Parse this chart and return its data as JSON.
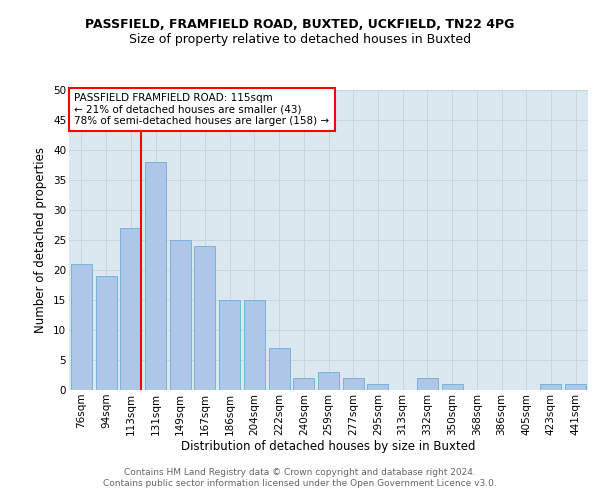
{
  "title": "PASSFIELD, FRAMFIELD ROAD, BUXTED, UCKFIELD, TN22 4PG",
  "subtitle": "Size of property relative to detached houses in Buxted",
  "xlabel": "Distribution of detached houses by size in Buxted",
  "ylabel": "Number of detached properties",
  "footer_line1": "Contains HM Land Registry data © Crown copyright and database right 2024.",
  "footer_line2": "Contains public sector information licensed under the Open Government Licence v3.0.",
  "bin_labels": [
    "76sqm",
    "94sqm",
    "113sqm",
    "131sqm",
    "149sqm",
    "167sqm",
    "186sqm",
    "204sqm",
    "222sqm",
    "240sqm",
    "259sqm",
    "277sqm",
    "295sqm",
    "313sqm",
    "332sqm",
    "350sqm",
    "368sqm",
    "386sqm",
    "405sqm",
    "423sqm",
    "441sqm"
  ],
  "bin_values": [
    21,
    19,
    27,
    38,
    25,
    24,
    15,
    15,
    7,
    2,
    3,
    2,
    1,
    0,
    2,
    1,
    0,
    0,
    0,
    1,
    1
  ],
  "bar_color": "#aec6e8",
  "bar_edgecolor": "#6baed6",
  "annotation_text": "PASSFIELD FRAMFIELD ROAD: 115sqm\n← 21% of detached houses are smaller (43)\n78% of semi-detached houses are larger (158) →",
  "annotation_box_color": "white",
  "annotation_box_edgecolor": "red",
  "vline_color": "red",
  "vline_x_index": 2,
  "ylim": [
    0,
    50
  ],
  "yticks": [
    0,
    5,
    10,
    15,
    20,
    25,
    30,
    35,
    40,
    45,
    50
  ],
  "grid_color": "#c8d4e0",
  "bg_color": "#dce8f0",
  "title_fontsize": 9,
  "subtitle_fontsize": 9,
  "xlabel_fontsize": 8.5,
  "ylabel_fontsize": 8.5,
  "tick_fontsize": 7.5,
  "annotation_fontsize": 7.5,
  "footer_fontsize": 6.5
}
